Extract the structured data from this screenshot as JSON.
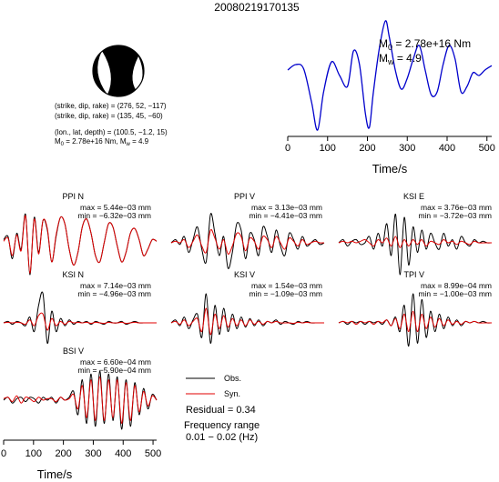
{
  "title": "20080219170135",
  "focal": {
    "line1": "(strike, dip, rake) = (276, 52, −117)",
    "line2": "(strike, dip, rake) = (135, 45, −60)",
    "line3": "(lon., lat, depth) = (100.5, −1.2, 15)",
    "m0_label": "M",
    "m0_sub": "0",
    "m0_value": " = 2.78e+16 Nm, M",
    "mw_sub": "w",
    "mw_value": " = 4.9"
  },
  "colors": {
    "observed": "#000000",
    "synthetic": "#e00000",
    "stf": "#0000cc",
    "axis": "#000000"
  },
  "chart_data": [
    {
      "type": "line",
      "name": "source_time_function",
      "xlabel": "Time/s",
      "xlim": [
        0,
        512
      ],
      "xticks": [
        0,
        100,
        200,
        300,
        400,
        500
      ],
      "annotation_m0": "M",
      "annotation_m0_sub": "0",
      "annotation_m0_value": " = 2.78e+16 Nm",
      "annotation_mw": "M",
      "annotation_mw_sub": "w",
      "annotation_mw_value": " = 4.9",
      "x": [
        0,
        20,
        40,
        60,
        75,
        90,
        110,
        130,
        150,
        165,
        180,
        195,
        205,
        215,
        230,
        245,
        255,
        270,
        285,
        300,
        315,
        330,
        345,
        360,
        375,
        390,
        405,
        420,
        435,
        450,
        465,
        480,
        495,
        512
      ],
      "y": [
        0.1,
        0.2,
        0.12,
        -0.5,
        -1.0,
        -0.3,
        0.25,
        0.0,
        -0.2,
        0.45,
        0.2,
        -0.7,
        -0.95,
        -0.3,
        0.5,
        1.0,
        0.7,
        0.1,
        -0.25,
        -0.05,
        0.3,
        0.55,
        0.1,
        -0.35,
        -0.3,
        0.2,
        0.55,
        0.3,
        -0.3,
        -0.2,
        0.05,
        0.0,
        0.1,
        0.18
      ]
    },
    {
      "type": "line",
      "name": "PPI N",
      "label": "PPI N",
      "max": "max = 5.44e−03 mm",
      "min": "min = −6.32e−03 mm",
      "series": [
        {
          "name": "Obs.",
          "values": [
            0.1,
            0.2,
            -0.5,
            0.3,
            -0.2,
            0.9,
            -1.0,
            0.8,
            -0.3,
            0.7,
            0.4,
            -0.6,
            0.2,
            0.8,
            0.6,
            -0.2,
            -0.7,
            -0.3,
            0.5,
            0.75,
            0.3,
            -0.4,
            -0.6,
            0.0,
            0.6,
            0.5,
            -0.1,
            -0.6,
            -0.3,
            0.3,
            0.45,
            0.1,
            -0.4,
            -0.2,
            0.1,
            0.05
          ]
        },
        {
          "name": "Syn.",
          "values": [
            0.05,
            0.15,
            -0.4,
            0.25,
            -0.25,
            0.85,
            -0.95,
            0.75,
            -0.35,
            0.7,
            0.45,
            -0.6,
            0.25,
            0.8,
            0.6,
            -0.2,
            -0.7,
            -0.3,
            0.5,
            0.75,
            0.3,
            -0.4,
            -0.6,
            0.0,
            0.6,
            0.5,
            -0.1,
            -0.6,
            -0.3,
            0.3,
            0.45,
            0.1,
            -0.4,
            -0.2,
            0.1,
            0.05
          ]
        }
      ]
    },
    {
      "type": "line",
      "name": "PPI V",
      "label": "PPI V",
      "max": "max = 3.13e−03 mm",
      "min": "min = −4.41e−03 mm",
      "series": [
        {
          "name": "Obs.",
          "values": [
            0.0,
            0.1,
            -0.05,
            0.2,
            -0.3,
            0.1,
            0.5,
            -0.2,
            -0.6,
            0.9,
            0.3,
            -0.4,
            0.2,
            -0.8,
            -0.3,
            0.6,
            0.4,
            -0.5,
            0.3,
            0.1,
            -0.4,
            0.5,
            0.2,
            -0.3,
            0.4,
            -0.1,
            -0.4,
            0.3,
            0.1,
            -0.2,
            0.2,
            -0.1,
            0.0,
            0.1,
            -0.05,
            0.0
          ]
        },
        {
          "name": "Syn.",
          "values": [
            0.0,
            0.05,
            0.0,
            0.1,
            -0.15,
            0.05,
            0.25,
            -0.1,
            -0.3,
            0.4,
            0.15,
            -0.2,
            0.1,
            -0.35,
            -0.1,
            0.3,
            0.2,
            -0.25,
            0.15,
            0.05,
            -0.2,
            0.2,
            0.1,
            -0.15,
            0.2,
            0.0,
            -0.2,
            0.15,
            0.05,
            -0.1,
            0.1,
            -0.05,
            0.0,
            0.05,
            0.0,
            0.0
          ]
        }
      ]
    },
    {
      "type": "line",
      "name": "KSI E",
      "label": "KSI E",
      "max": "max = 3.76e−03 mm",
      "min": "min = −3.72e−03 mm",
      "series": [
        {
          "name": "Obs.",
          "values": [
            0.0,
            0.1,
            -0.1,
            0.05,
            0.1,
            -0.05,
            0.0,
            0.2,
            -0.2,
            0.3,
            -0.1,
            0.6,
            -0.4,
            0.9,
            -1.0,
            0.8,
            -0.7,
            0.5,
            -0.3,
            0.4,
            -0.2,
            0.3,
            0.0,
            -0.2,
            0.3,
            -0.1,
            0.1,
            -0.2,
            0.2,
            0.0,
            -0.1,
            0.1,
            0.0,
            0.05,
            0.0,
            0.0
          ]
        },
        {
          "name": "Syn.",
          "values": [
            0.0,
            0.05,
            0.0,
            0.05,
            0.0,
            0.05,
            0.1,
            0.0,
            -0.1,
            0.1,
            0.0,
            0.15,
            -0.1,
            0.2,
            -0.15,
            0.1,
            -0.1,
            0.1,
            -0.05,
            0.1,
            -0.1,
            0.05,
            0.0,
            -0.05,
            0.1,
            0.0,
            0.05,
            -0.05,
            0.05,
            0.0,
            -0.05,
            0.05,
            0.0,
            0.0,
            0.0,
            0.0
          ]
        }
      ]
    },
    {
      "type": "line",
      "name": "KSI N",
      "label": "KSI N",
      "max": "max = 7.14e−03 mm",
      "min": "min = −4.96e−03 mm",
      "series": [
        {
          "name": "Obs.",
          "values": [
            0.0,
            0.05,
            -0.05,
            0.05,
            0.0,
            -0.1,
            0.2,
            -0.3,
            0.6,
            1.0,
            -0.7,
            0.4,
            -0.3,
            0.15,
            -0.1,
            0.1,
            -0.05,
            0.05,
            0.0,
            0.05,
            -0.05,
            0.05,
            0.0,
            -0.05,
            0.05,
            0.0,
            0.0,
            0.05,
            -0.05,
            0.0,
            0.05,
            0.0,
            0.0,
            0.0,
            0.0,
            0.0
          ]
        },
        {
          "name": "Syn.",
          "values": [
            0.0,
            0.02,
            0.0,
            0.02,
            0.0,
            -0.05,
            0.1,
            -0.1,
            0.25,
            0.3,
            -0.25,
            0.15,
            -0.1,
            0.05,
            -0.05,
            0.05,
            0.0,
            0.02,
            0.0,
            0.02,
            -0.02,
            0.02,
            0.0,
            -0.02,
            0.02,
            0.0,
            0.0,
            0.02,
            -0.02,
            0.0,
            0.02,
            0.0,
            0.0,
            0.0,
            0.0,
            0.0
          ]
        }
      ]
    },
    {
      "type": "line",
      "name": "KSI V",
      "label": "KSI V",
      "max": "max = 1.54e−03 mm",
      "min": "min = −1.09e−03 mm",
      "series": [
        {
          "name": "Obs.",
          "values": [
            0.0,
            0.1,
            -0.1,
            0.2,
            -0.2,
            0.1,
            0.3,
            -0.5,
            1.0,
            -0.7,
            0.6,
            -0.4,
            0.5,
            -0.3,
            0.3,
            -0.2,
            0.2,
            -0.15,
            0.15,
            -0.1,
            0.1,
            -0.1,
            0.05,
            0.0,
            0.1,
            -0.05,
            0.05,
            0.0,
            -0.05,
            0.05,
            0.0,
            0.05,
            0.0,
            0.0,
            0.0,
            0.0
          ]
        },
        {
          "name": "Syn.",
          "values": [
            0.0,
            0.05,
            -0.05,
            0.1,
            -0.1,
            0.05,
            0.15,
            -0.3,
            0.5,
            -0.4,
            0.3,
            -0.2,
            0.25,
            -0.15,
            0.15,
            -0.1,
            0.1,
            -0.1,
            0.1,
            -0.05,
            0.05,
            -0.05,
            0.05,
            0.0,
            0.05,
            0.0,
            0.0,
            0.0,
            -0.02,
            0.02,
            0.0,
            0.02,
            0.0,
            0.0,
            0.0,
            0.0
          ]
        }
      ]
    },
    {
      "type": "line",
      "name": "TPI V",
      "label": "TPI V",
      "max": "max = 8.99e−04 mm",
      "min": "min = −1.00e−03 mm",
      "series": [
        {
          "name": "Obs.",
          "values": [
            0.0,
            0.05,
            -0.05,
            0.05,
            0.0,
            0.05,
            -0.05,
            0.05,
            0.0,
            0.05,
            -0.05,
            0.1,
            -0.1,
            0.2,
            -0.3,
            0.6,
            -0.8,
            1.0,
            -0.7,
            0.8,
            -0.5,
            0.4,
            -0.3,
            0.3,
            -0.2,
            0.2,
            -0.1,
            0.1,
            -0.1,
            0.05,
            0.0,
            0.05,
            0.0,
            0.05,
            0.0,
            0.0
          ]
        },
        {
          "name": "Syn.",
          "values": [
            0.0,
            0.05,
            0.0,
            0.05,
            -0.05,
            0.05,
            0.0,
            0.05,
            -0.05,
            0.05,
            0.0,
            0.1,
            -0.1,
            0.15,
            -0.2,
            0.3,
            -0.3,
            0.4,
            -0.3,
            0.3,
            -0.2,
            0.2,
            -0.15,
            0.15,
            -0.1,
            0.1,
            -0.05,
            0.05,
            -0.05,
            0.05,
            0.0,
            0.05,
            0.0,
            0.0,
            0.0,
            0.0
          ]
        }
      ]
    },
    {
      "type": "line",
      "name": "BSI V",
      "label": "BSI V",
      "max": "max = 6.60e−04 mm",
      "min": "min = −5.90e−04 mm",
      "xlabel": "Time/s",
      "xticks": [
        0,
        100,
        200,
        300,
        400,
        500
      ],
      "xlim": [
        0,
        512
      ],
      "series": [
        {
          "name": "Obs.",
          "values": [
            0.0,
            0.1,
            -0.1,
            0.05,
            0.1,
            -0.05,
            0.1,
            0.05,
            -0.1,
            0.1,
            0.0,
            0.1,
            -0.1,
            0.1,
            0.0,
            0.1,
            0.3,
            -0.5,
            0.7,
            -0.8,
            0.9,
            -0.9,
            1.0,
            -0.8,
            0.9,
            -0.7,
            0.8,
            -1.0,
            0.7,
            -0.9,
            0.6,
            -0.5,
            0.4,
            -0.3,
            0.2,
            0.0
          ]
        },
        {
          "name": "Syn.",
          "values": [
            0.05,
            0.1,
            -0.05,
            0.15,
            -0.1,
            0.1,
            0.05,
            -0.05,
            0.1,
            0.0,
            0.05,
            0.05,
            -0.05,
            0.1,
            0.0,
            0.05,
            0.2,
            -0.3,
            0.5,
            -0.6,
            0.7,
            -0.7,
            0.8,
            -0.7,
            0.7,
            -0.6,
            0.7,
            -0.8,
            0.6,
            -0.7,
            0.5,
            -0.4,
            0.3,
            -0.2,
            0.15,
            0.0
          ]
        }
      ]
    }
  ],
  "legend": {
    "obs": "Obs.",
    "syn": "Syn."
  },
  "residual": "Residual = 0.34",
  "freq_label": "Frequency range",
  "freq_value": "0.01 − 0.02 (Hz)"
}
